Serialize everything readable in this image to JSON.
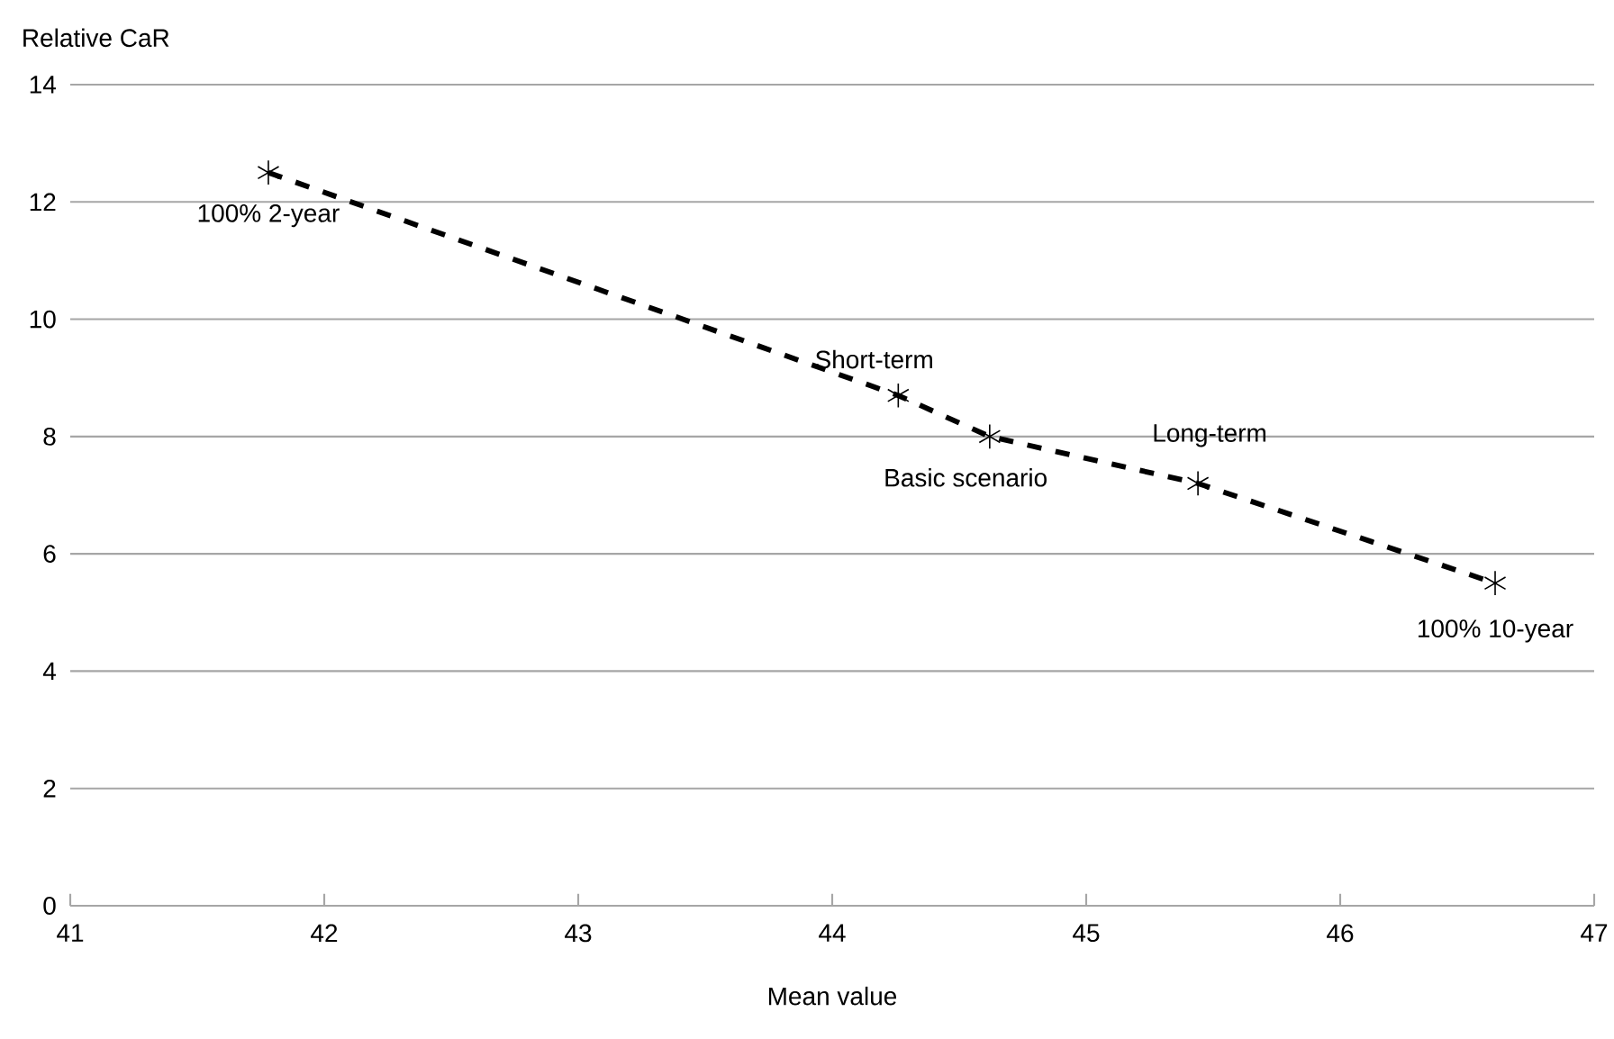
{
  "chart_data": {
    "type": "line",
    "xlabel": "Mean value",
    "ylabel": "Relative CaR",
    "x": [
      41.78,
      44.26,
      44.62,
      45.44,
      46.61
    ],
    "series": [
      {
        "color": "#000000",
        "values": [
          12.5,
          8.7,
          8.0,
          7.2,
          5.5
        ]
      }
    ],
    "xlim": [
      41,
      47
    ],
    "xticks": [
      41,
      42,
      43,
      44,
      45,
      46,
      47
    ],
    "ylim": [
      0,
      14
    ],
    "yticks": [
      0,
      2,
      4,
      6,
      8,
      10,
      12,
      14
    ],
    "grid": "y",
    "marker": "cross",
    "line_style": "dashed",
    "annotations": [
      {
        "text": "100% 2-year",
        "x": 41.78,
        "y": 12.5
      },
      {
        "text": "Short-term",
        "x": 44.26,
        "y": 8.7
      },
      {
        "text": "Basic scenario",
        "x": 44.62,
        "y": 8.0
      },
      {
        "text": "Long-term",
        "x": 45.44,
        "y": 7.2
      },
      {
        "text": "100% 10-year",
        "x": 46.61,
        "y": 5.5
      }
    ]
  }
}
